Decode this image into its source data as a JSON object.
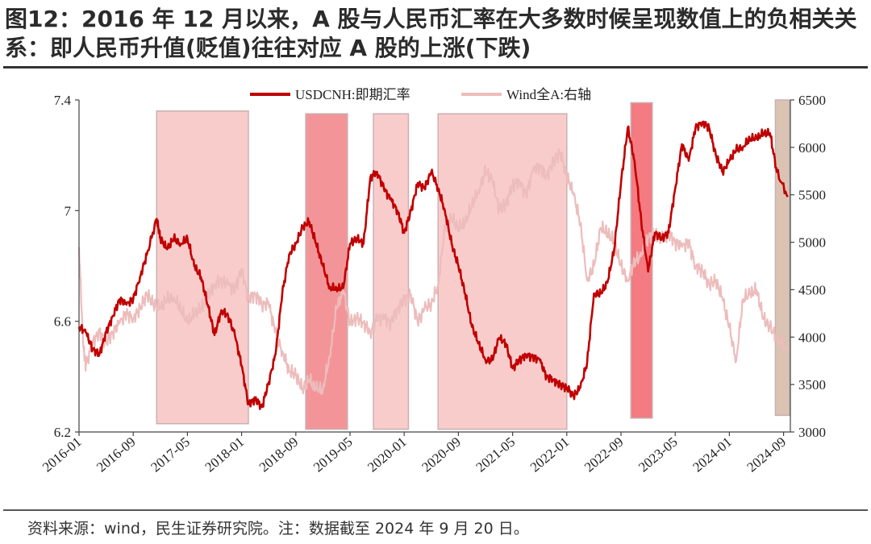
{
  "header": {
    "title": "图12：2016 年 12 月以来，A 股与人民币汇率在大多数时候呈现数值上的负相关关系：即人民币升值(贬值)往往对应 A 股的上涨(下跌)"
  },
  "footer": {
    "source": "资料来源：wind，民生证券研究院。注：数据截至 2024 年 9 月 20 日。"
  },
  "chart_data": {
    "type": "line",
    "title": "",
    "xlabel": "",
    "ylabel": "",
    "y2label": "",
    "ylim": [
      6.2,
      7.4
    ],
    "y2lim": [
      3000,
      6500
    ],
    "xlim": [
      "2016-01",
      "2024-10"
    ],
    "grid": false,
    "legend_position": "top-center",
    "yticks": [
      "7.4",
      "7",
      "6.6",
      "6.2"
    ],
    "y2ticks": [
      "6500",
      "6000",
      "5500",
      "5000",
      "4500",
      "4000",
      "3500",
      "3000"
    ],
    "xticks": [
      "2016-01",
      "2016-09",
      "2017-05",
      "2018-01",
      "2018-09",
      "2019-05",
      "2020-01",
      "2020-09",
      "2021-05",
      "2022-01",
      "2022-09",
      "2023-05",
      "2024-01",
      "2024-09"
    ],
    "series": [
      {
        "name": "USDCNH:即期汇率",
        "axis": "left",
        "color": "#c00000",
        "points": [
          [
            "2016-01-01",
            6.58
          ],
          [
            "2016-02-01",
            6.56
          ],
          [
            "2016-03-01",
            6.5
          ],
          [
            "2016-04-01",
            6.48
          ],
          [
            "2016-05-01",
            6.56
          ],
          [
            "2016-06-01",
            6.62
          ],
          [
            "2016-07-01",
            6.68
          ],
          [
            "2016-08-01",
            6.66
          ],
          [
            "2016-09-01",
            6.68
          ],
          [
            "2016-10-01",
            6.76
          ],
          [
            "2016-11-01",
            6.84
          ],
          [
            "2016-12-15",
            6.97
          ],
          [
            "2017-01-01",
            6.9
          ],
          [
            "2017-02-01",
            6.86
          ],
          [
            "2017-03-01",
            6.9
          ],
          [
            "2017-04-01",
            6.88
          ],
          [
            "2017-05-01",
            6.9
          ],
          [
            "2017-06-01",
            6.8
          ],
          [
            "2017-07-01",
            6.76
          ],
          [
            "2017-08-01",
            6.66
          ],
          [
            "2017-09-01",
            6.55
          ],
          [
            "2017-10-01",
            6.64
          ],
          [
            "2017-11-01",
            6.62
          ],
          [
            "2017-12-01",
            6.55
          ],
          [
            "2018-01-01",
            6.44
          ],
          [
            "2018-02-01",
            6.3
          ],
          [
            "2018-03-01",
            6.32
          ],
          [
            "2018-04-01",
            6.29
          ],
          [
            "2018-05-01",
            6.38
          ],
          [
            "2018-06-01",
            6.48
          ],
          [
            "2018-07-01",
            6.7
          ],
          [
            "2018-08-01",
            6.84
          ],
          [
            "2018-09-01",
            6.88
          ],
          [
            "2018-10-01",
            6.94
          ],
          [
            "2018-11-01",
            6.96
          ],
          [
            "2018-12-01",
            6.88
          ],
          [
            "2019-01-01",
            6.8
          ],
          [
            "2019-02-01",
            6.72
          ],
          [
            "2019-03-01",
            6.72
          ],
          [
            "2019-04-01",
            6.72
          ],
          [
            "2019-05-01",
            6.88
          ],
          [
            "2019-06-01",
            6.9
          ],
          [
            "2019-07-01",
            6.88
          ],
          [
            "2019-08-01",
            7.12
          ],
          [
            "2019-09-01",
            7.14
          ],
          [
            "2019-10-01",
            7.08
          ],
          [
            "2019-11-01",
            7.04
          ],
          [
            "2019-12-01",
            7.0
          ],
          [
            "2020-01-01",
            6.92
          ],
          [
            "2020-02-01",
            7.0
          ],
          [
            "2020-03-01",
            7.1
          ],
          [
            "2020-04-01",
            7.08
          ],
          [
            "2020-05-01",
            7.14
          ],
          [
            "2020-06-01",
            7.08
          ],
          [
            "2020-07-01",
            7.0
          ],
          [
            "2020-08-01",
            6.88
          ],
          [
            "2020-09-01",
            6.8
          ],
          [
            "2020-10-01",
            6.7
          ],
          [
            "2020-11-01",
            6.58
          ],
          [
            "2020-12-01",
            6.52
          ],
          [
            "2021-01-01",
            6.46
          ],
          [
            "2021-02-01",
            6.46
          ],
          [
            "2021-03-01",
            6.54
          ],
          [
            "2021-04-01",
            6.52
          ],
          [
            "2021-05-01",
            6.43
          ],
          [
            "2021-06-01",
            6.46
          ],
          [
            "2021-07-01",
            6.48
          ],
          [
            "2021-08-01",
            6.47
          ],
          [
            "2021-09-01",
            6.46
          ],
          [
            "2021-10-01",
            6.4
          ],
          [
            "2021-11-01",
            6.39
          ],
          [
            "2021-12-01",
            6.37
          ],
          [
            "2022-01-01",
            6.36
          ],
          [
            "2022-02-01",
            6.33
          ],
          [
            "2022-03-01",
            6.36
          ],
          [
            "2022-04-01",
            6.45
          ],
          [
            "2022-05-01",
            6.7
          ],
          [
            "2022-06-01",
            6.7
          ],
          [
            "2022-07-01",
            6.74
          ],
          [
            "2022-08-01",
            6.86
          ],
          [
            "2022-09-01",
            7.1
          ],
          [
            "2022-10-01",
            7.3
          ],
          [
            "2022-11-01",
            7.18
          ],
          [
            "2022-12-01",
            6.96
          ],
          [
            "2023-01-01",
            6.78
          ],
          [
            "2023-02-01",
            6.92
          ],
          [
            "2023-03-01",
            6.9
          ],
          [
            "2023-04-01",
            6.92
          ],
          [
            "2023-05-01",
            7.08
          ],
          [
            "2023-06-01",
            7.24
          ],
          [
            "2023-07-01",
            7.18
          ],
          [
            "2023-08-01",
            7.3
          ],
          [
            "2023-09-01",
            7.32
          ],
          [
            "2023-10-01",
            7.3
          ],
          [
            "2023-11-01",
            7.2
          ],
          [
            "2023-12-01",
            7.14
          ],
          [
            "2024-01-01",
            7.18
          ],
          [
            "2024-02-01",
            7.22
          ],
          [
            "2024-03-01",
            7.23
          ],
          [
            "2024-04-01",
            7.26
          ],
          [
            "2024-05-01",
            7.26
          ],
          [
            "2024-06-01",
            7.28
          ],
          [
            "2024-07-01",
            7.28
          ],
          [
            "2024-08-01",
            7.14
          ],
          [
            "2024-09-20",
            7.05
          ]
        ]
      },
      {
        "name": "Wind全A:右轴",
        "axis": "right",
        "color": "#edbcbc",
        "points": [
          [
            "2016-01-01",
            4950
          ],
          [
            "2016-01-20",
            3900
          ],
          [
            "2016-02-01",
            3700
          ],
          [
            "2016-03-01",
            3950
          ],
          [
            "2016-04-01",
            4050
          ],
          [
            "2016-05-01",
            3950
          ],
          [
            "2016-06-01",
            4050
          ],
          [
            "2016-07-01",
            4150
          ],
          [
            "2016-08-01",
            4250
          ],
          [
            "2016-09-01",
            4200
          ],
          [
            "2016-10-01",
            4300
          ],
          [
            "2016-11-01",
            4450
          ],
          [
            "2016-12-01",
            4350
          ],
          [
            "2017-01-01",
            4300
          ],
          [
            "2017-02-01",
            4400
          ],
          [
            "2017-03-01",
            4420
          ],
          [
            "2017-04-01",
            4300
          ],
          [
            "2017-05-01",
            4150
          ],
          [
            "2017-06-01",
            4250
          ],
          [
            "2017-07-01",
            4300
          ],
          [
            "2017-08-01",
            4420
          ],
          [
            "2017-09-01",
            4560
          ],
          [
            "2017-10-01",
            4600
          ],
          [
            "2017-11-01",
            4550
          ],
          [
            "2017-12-01",
            4500
          ],
          [
            "2018-01-01",
            4720
          ],
          [
            "2018-02-01",
            4400
          ],
          [
            "2018-03-01",
            4450
          ],
          [
            "2018-04-01",
            4350
          ],
          [
            "2018-05-01",
            4350
          ],
          [
            "2018-06-01",
            4050
          ],
          [
            "2018-07-01",
            3850
          ],
          [
            "2018-08-01",
            3650
          ],
          [
            "2018-09-01",
            3600
          ],
          [
            "2018-10-01",
            3450
          ],
          [
            "2018-11-01",
            3550
          ],
          [
            "2018-12-01",
            3450
          ],
          [
            "2019-01-01",
            3450
          ],
          [
            "2019-02-01",
            3800
          ],
          [
            "2019-03-01",
            4300
          ],
          [
            "2019-04-01",
            4500
          ],
          [
            "2019-05-01",
            4150
          ],
          [
            "2019-06-01",
            4200
          ],
          [
            "2019-07-01",
            4150
          ],
          [
            "2019-08-01",
            4050
          ],
          [
            "2019-09-01",
            4200
          ],
          [
            "2019-10-01",
            4200
          ],
          [
            "2019-11-01",
            4150
          ],
          [
            "2019-12-01",
            4300
          ],
          [
            "2020-01-01",
            4400
          ],
          [
            "2020-02-01",
            4450
          ],
          [
            "2020-03-01",
            4150
          ],
          [
            "2020-04-01",
            4300
          ],
          [
            "2020-05-01",
            4350
          ],
          [
            "2020-06-01",
            4550
          ],
          [
            "2020-07-01",
            5150
          ],
          [
            "2020-08-01",
            5250
          ],
          [
            "2020-09-01",
            5150
          ],
          [
            "2020-10-01",
            5200
          ],
          [
            "2020-11-01",
            5400
          ],
          [
            "2020-12-01",
            5550
          ],
          [
            "2021-01-01",
            5750
          ],
          [
            "2021-02-01",
            5650
          ],
          [
            "2021-03-01",
            5350
          ],
          [
            "2021-04-01",
            5400
          ],
          [
            "2021-05-01",
            5600
          ],
          [
            "2021-06-01",
            5650
          ],
          [
            "2021-07-01",
            5500
          ],
          [
            "2021-08-01",
            5750
          ],
          [
            "2021-09-01",
            5800
          ],
          [
            "2021-10-01",
            5700
          ],
          [
            "2021-11-01",
            5850
          ],
          [
            "2021-12-01",
            5950
          ],
          [
            "2022-01-01",
            5700
          ],
          [
            "2022-02-01",
            5500
          ],
          [
            "2022-03-01",
            5200
          ],
          [
            "2022-04-01",
            4600
          ],
          [
            "2022-05-01",
            4750
          ],
          [
            "2022-06-01",
            5150
          ],
          [
            "2022-07-01",
            5100
          ],
          [
            "2022-08-01",
            5000
          ],
          [
            "2022-09-01",
            4750
          ],
          [
            "2022-10-01",
            4600
          ],
          [
            "2022-11-01",
            4800
          ],
          [
            "2022-12-01",
            4850
          ],
          [
            "2023-01-01",
            5050
          ],
          [
            "2023-02-01",
            5100
          ],
          [
            "2023-03-01",
            5050
          ],
          [
            "2023-04-01",
            5100
          ],
          [
            "2023-05-01",
            5000
          ],
          [
            "2023-06-01",
            4950
          ],
          [
            "2023-07-01",
            5000
          ],
          [
            "2023-08-01",
            4750
          ],
          [
            "2023-09-01",
            4700
          ],
          [
            "2023-10-01",
            4550
          ],
          [
            "2023-11-01",
            4600
          ],
          [
            "2023-12-01",
            4400
          ],
          [
            "2024-01-01",
            4100
          ],
          [
            "2024-02-01",
            3750
          ],
          [
            "2024-03-01",
            4400
          ],
          [
            "2024-04-01",
            4450
          ],
          [
            "2024-05-01",
            4500
          ],
          [
            "2024-06-01",
            4200
          ],
          [
            "2024-07-01",
            4100
          ],
          [
            "2024-08-01",
            4000
          ],
          [
            "2024-09-20",
            3850
          ]
        ]
      }
    ],
    "highlight_periods": [
      {
        "start": "2016-12-15",
        "end": "2018-02-01",
        "y_top": 7.36,
        "y_bottom": 6.23,
        "color": "#f4a3a3",
        "opacity": 0.55
      },
      {
        "start": "2018-10-15",
        "end": "2019-04-20",
        "y_top": 7.35,
        "y_bottom": 6.21,
        "color": "#f07a7e",
        "opacity": 0.8
      },
      {
        "start": "2019-08-15",
        "end": "2020-01-20",
        "y_top": 7.35,
        "y_bottom": 6.21,
        "color": "#f4a3a3",
        "opacity": 0.55
      },
      {
        "start": "2020-06-01",
        "end": "2022-01-01",
        "y_top": 7.35,
        "y_bottom": 6.21,
        "color": "#f4a3a3",
        "opacity": 0.55
      },
      {
        "start": "2022-10-15",
        "end": "2023-01-20",
        "y_top": 7.39,
        "y_bottom": 6.25,
        "color": "#f05a62",
        "opacity": 0.8
      },
      {
        "start": "2024-07-25",
        "end": "2024-09-28",
        "y_top": 7.4,
        "y_bottom": 6.26,
        "color": "#c8a38a",
        "opacity": 0.65
      }
    ]
  }
}
